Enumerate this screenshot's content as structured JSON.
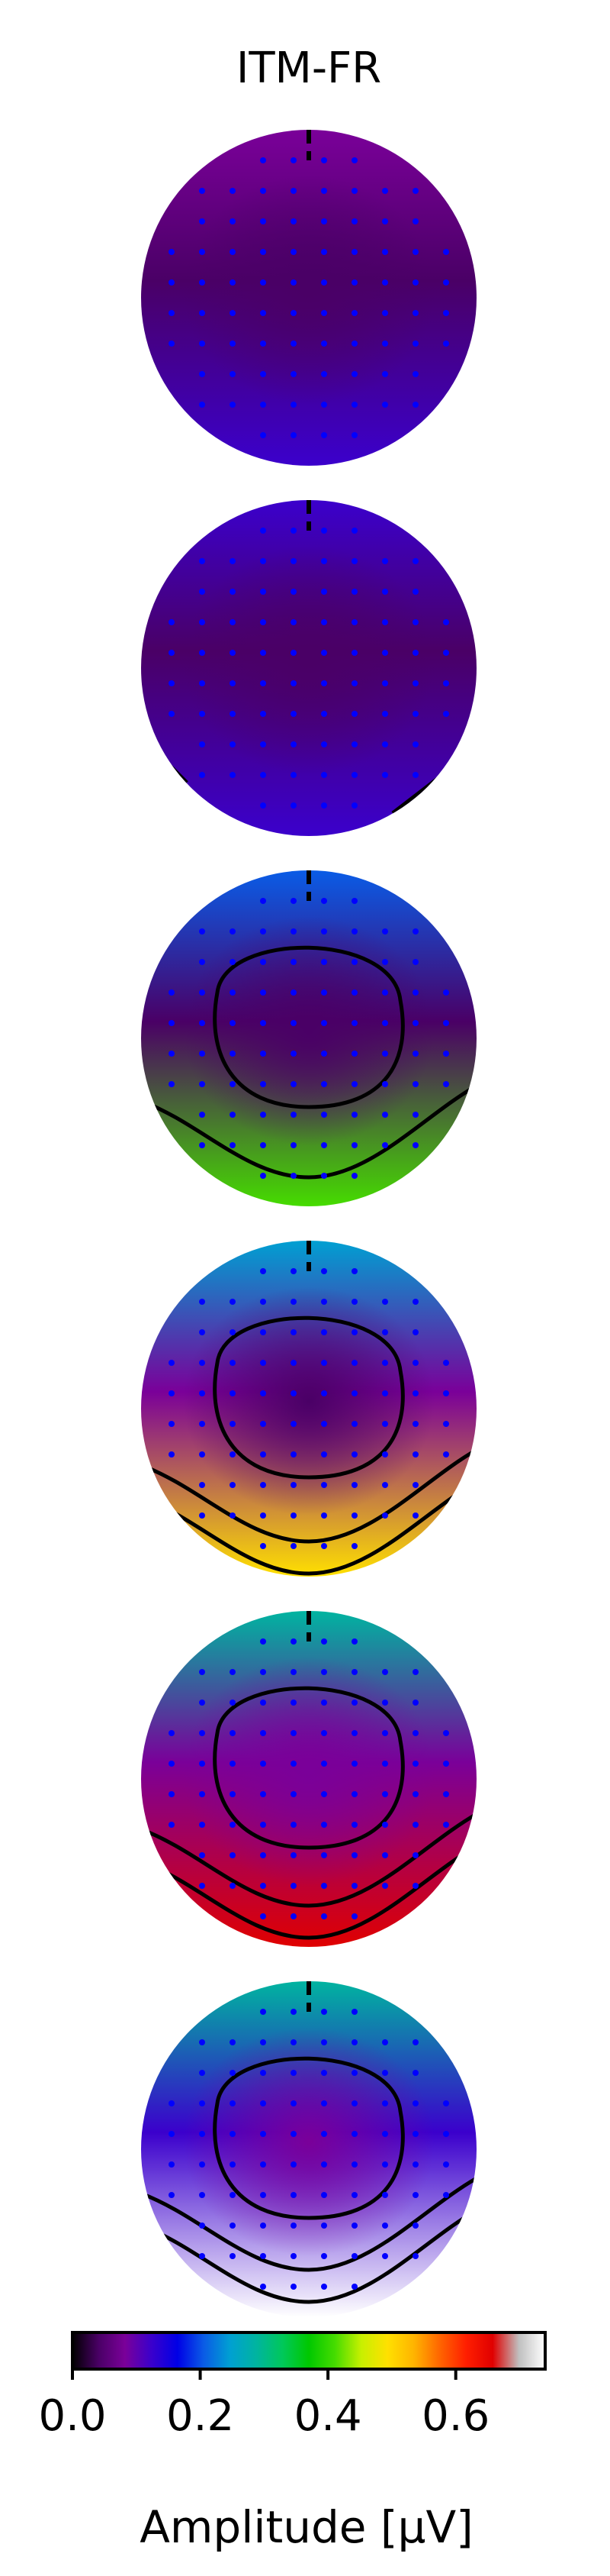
{
  "chart_data": {
    "type": "heatmap",
    "title": "ITM-FR",
    "colorbar": {
      "label": "Amplitude [μV]",
      "range": [
        0.0,
        0.74
      ],
      "ticks": [
        0.0,
        0.2,
        0.4,
        0.6
      ],
      "tick_labels": [
        "0.0",
        "0.2",
        "0.4",
        "0.6"
      ],
      "colormap": [
        "#000000",
        "#4a0066",
        "#7a0099",
        "#3b00cc",
        "#0000e6",
        "#0a5ce6",
        "#00a0d2",
        "#00b4a0",
        "#00c85a",
        "#00c800",
        "#46dc00",
        "#c8f000",
        "#ffe000",
        "#ffb400",
        "#ff6400",
        "#ff1e00",
        "#e00000",
        "#c0c0c0",
        "#ffffff"
      ]
    },
    "panels": [
      {
        "min": 0.03,
        "front": 0.1,
        "center": 0.03,
        "back": 0.11,
        "contours": []
      },
      {
        "min": 0.03,
        "front": 0.11,
        "center": 0.04,
        "back": 0.12,
        "contours": [
          0.1
        ]
      },
      {
        "min": 0.05,
        "front": 0.22,
        "center": 0.06,
        "back": 0.4,
        "contours": [
          0.1,
          0.3
        ]
      },
      {
        "min": 0.06,
        "front": 0.24,
        "center": 0.08,
        "back": 0.48,
        "contours": [
          0.1,
          0.3,
          0.4
        ]
      },
      {
        "min": 0.07,
        "front": 0.27,
        "center": 0.1,
        "back": 0.65,
        "contours": [
          0.1,
          0.3,
          0.4,
          0.5
        ]
      },
      {
        "min": 0.08,
        "front": 0.3,
        "center": 0.12,
        "back": 0.72,
        "contours": [
          0.1,
          0.3,
          0.4,
          0.5,
          0.6
        ]
      }
    ],
    "sensor_color": "#0000ff",
    "contour_color": "#000000"
  }
}
